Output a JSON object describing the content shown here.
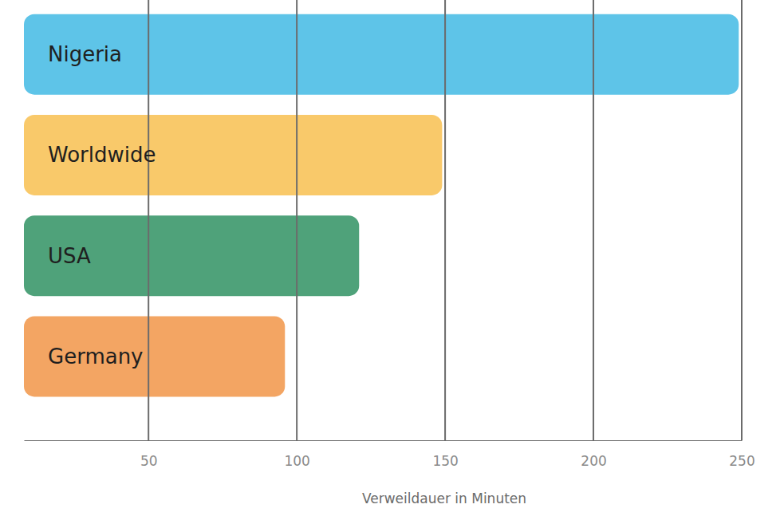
{
  "chart_data": {
    "type": "bar",
    "orientation": "horizontal",
    "x_label": "Verweildauer in Minuten",
    "categories": [
      "Nigeria",
      "Worldwide",
      "USA",
      "Germany"
    ],
    "values": [
      249,
      149,
      121,
      96
    ],
    "colors": [
      "#5ec4e8",
      "#f9c96a",
      "#4fa27a",
      "#f3a563"
    ],
    "xlim": [
      8,
      250
    ],
    "xticks": [
      50,
      100,
      150,
      200,
      250
    ],
    "grid": true
  }
}
